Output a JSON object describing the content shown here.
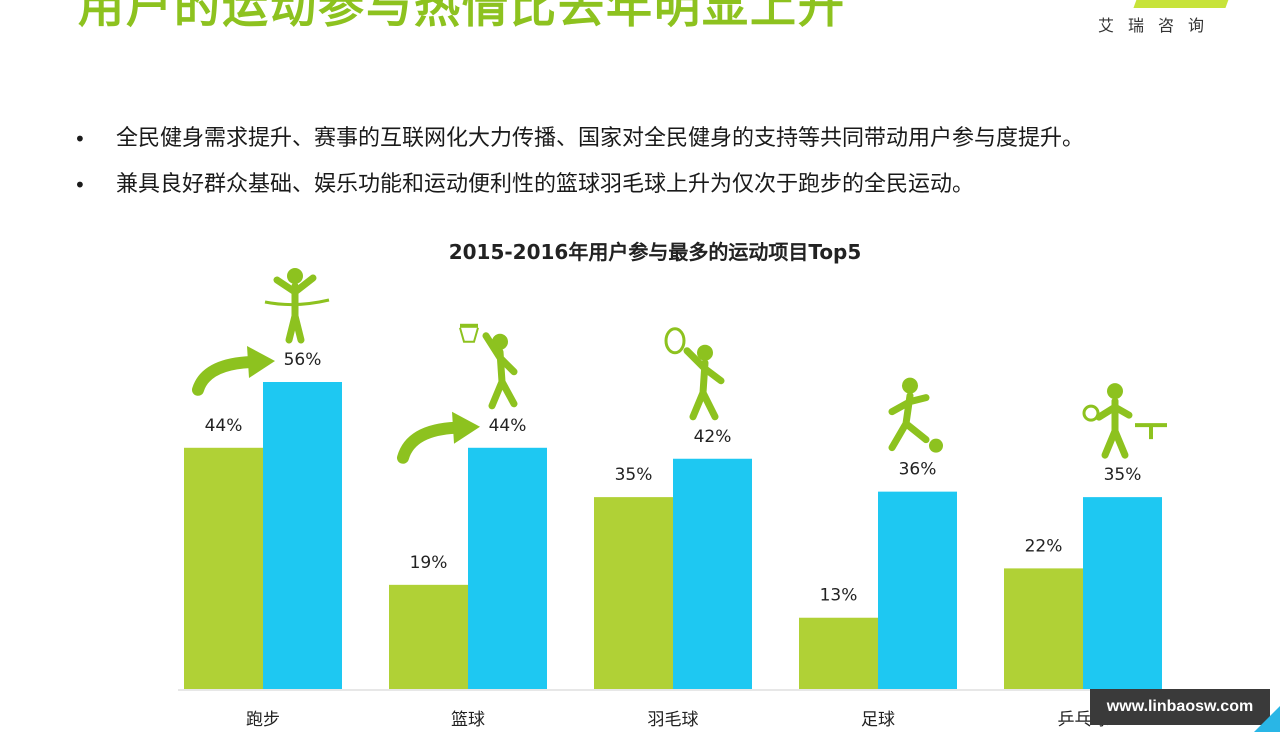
{
  "header": {
    "title": "用户的运动参与热情比去年明显上升",
    "brand": "艾瑞咨询"
  },
  "bullets": [
    "全民健身需求提升、赛事的互联网化大力传播、国家对全民健身的支持等共同带动用户参与度提升。",
    "兼具良好群众基础、娱乐功能和运动便利性的篮球羽毛球上升为仅次于跑步的全民运动。"
  ],
  "bullet_marker": "•",
  "colors": {
    "y2015": "#b0d136",
    "y2016": "#1ec8f2",
    "accent": "#8dc21f",
    "label": "#222222"
  },
  "chart_data": {
    "type": "bar",
    "title": "2015-2016年用户参与最多的运动项目Top5",
    "categories": [
      "跑步",
      "篮球",
      "羽毛球",
      "足球",
      "乒乓球"
    ],
    "series": [
      {
        "values": [
          44,
          19,
          35,
          13,
          22
        ]
      },
      {
        "values": [
          56,
          44,
          42,
          36,
          35
        ]
      }
    ],
    "value_labels": [
      [
        "44%",
        "19%",
        "35%",
        "13%",
        "22%"
      ],
      [
        "56%",
        "44%",
        "42%",
        "36%",
        "35%"
      ]
    ],
    "icons": [
      "running-icon",
      "basketball-icon",
      "badminton-icon",
      "soccer-icon",
      "table-tennis-icon"
    ],
    "rise_arrows": [
      "跑步",
      "篮球"
    ],
    "ylim": [
      0,
      56
    ],
    "grid": false,
    "legend": "none"
  },
  "watermark": "www.linbaosw.com"
}
